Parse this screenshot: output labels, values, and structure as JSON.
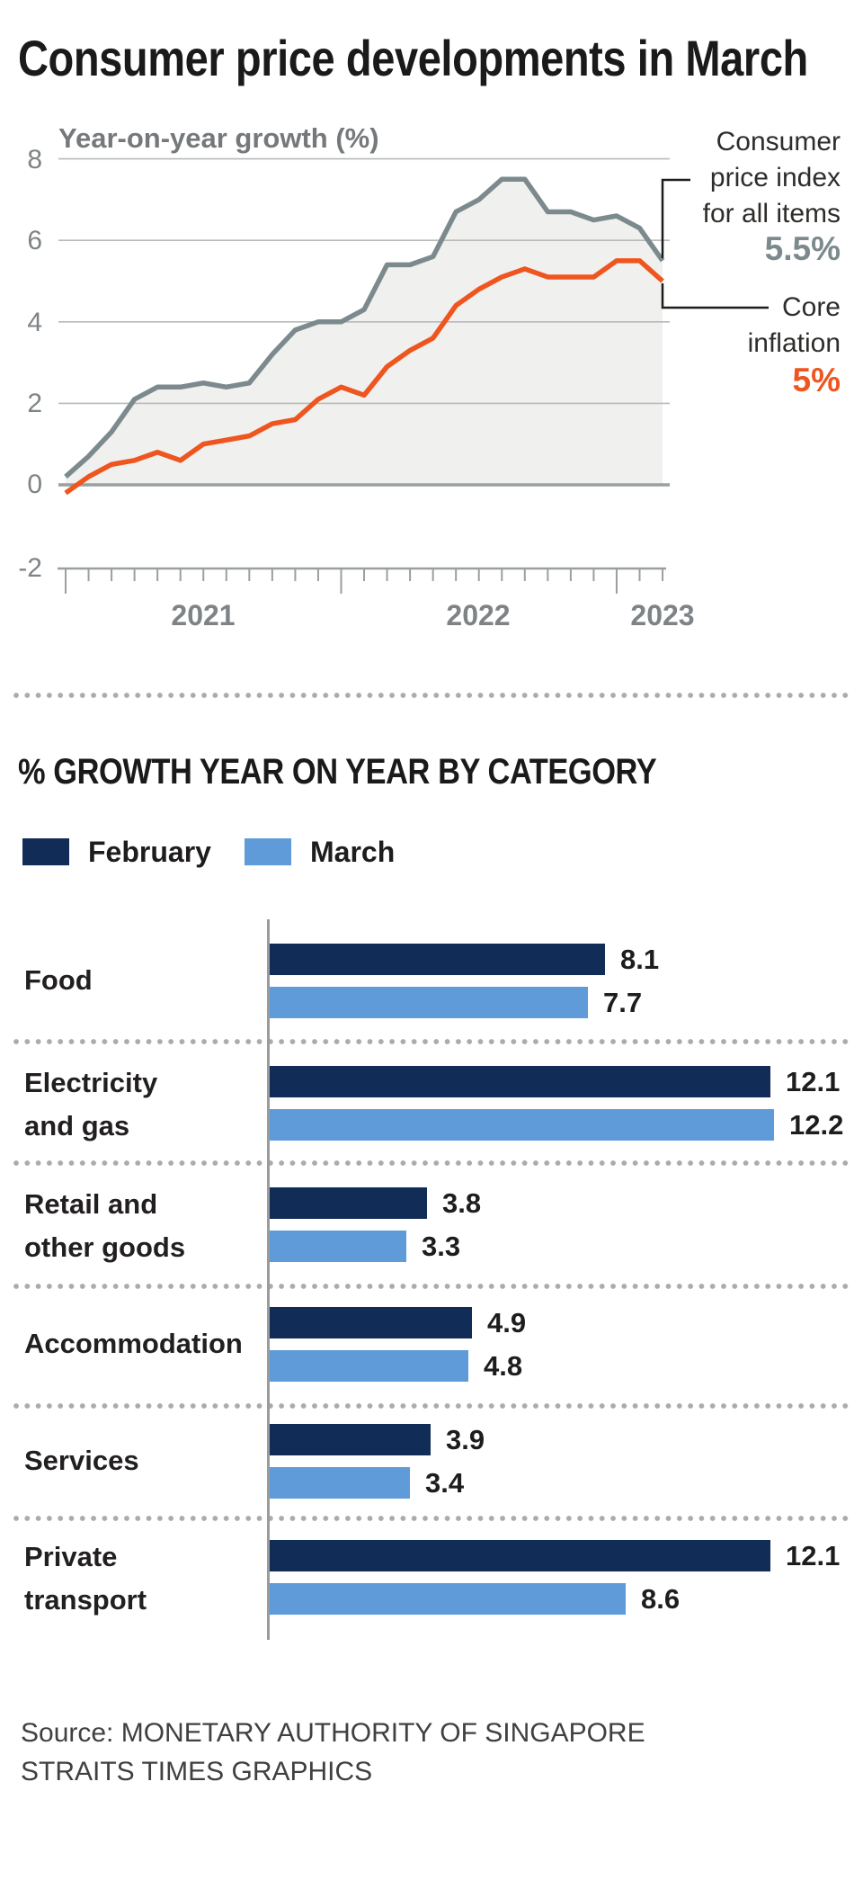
{
  "title": "Consumer price developments in March",
  "line_chart": {
    "subtitle": "Year-on-year growth (%)",
    "y_ticks": [
      "8",
      "6",
      "4",
      "2",
      "0",
      "-2"
    ],
    "x_labels": [
      "2021",
      "2022",
      "2023"
    ],
    "annotations": {
      "cpi": {
        "line1": "Consumer",
        "line2": "price index",
        "line3": "for all items",
        "value": "5.5%"
      },
      "core": {
        "line1": "Core",
        "line2": "inflation",
        "value": "5%"
      }
    }
  },
  "chart_data": [
    {
      "type": "line",
      "title": "Consumer price developments in March",
      "ylabel": "Year-on-year growth (%)",
      "ylim": [
        -2,
        8
      ],
      "y_ticks": [
        8,
        6,
        4,
        2,
        0,
        -2
      ],
      "x_start": "Jan 2021",
      "x_end": "Mar 2023",
      "x_frequency": "monthly",
      "x_tick_years": [
        "2021",
        "2022",
        "2023"
      ],
      "grid": true,
      "series": [
        {
          "name": "Consumer price index for all items",
          "color": "#7c8a8e",
          "end_label": "5.5%",
          "values": [
            0.2,
            0.7,
            1.3,
            2.1,
            2.4,
            2.4,
            2.5,
            2.4,
            2.5,
            3.2,
            3.8,
            4.0,
            4.0,
            4.3,
            5.4,
            5.4,
            5.6,
            6.7,
            7.0,
            7.5,
            7.5,
            6.7,
            6.7,
            6.5,
            6.6,
            6.3,
            5.5
          ]
        },
        {
          "name": "Core inflation",
          "color": "#ee551f",
          "end_label": "5%",
          "values": [
            -0.2,
            0.2,
            0.5,
            0.6,
            0.8,
            0.6,
            1.0,
            1.1,
            1.2,
            1.5,
            1.6,
            2.1,
            2.4,
            2.2,
            2.9,
            3.3,
            3.6,
            4.4,
            4.8,
            5.1,
            5.3,
            5.1,
            5.1,
            5.1,
            5.5,
            5.5,
            5.0
          ]
        }
      ]
    },
    {
      "type": "bar",
      "title": "% GROWTH YEAR ON YEAR BY CATEGORY",
      "orientation": "horizontal",
      "categories": [
        "Food",
        "Electricity and gas",
        "Retail and other goods",
        "Accommodation",
        "Services",
        "Private transport"
      ],
      "categories_lines": [
        [
          "Food"
        ],
        [
          "Electricity",
          "and gas"
        ],
        [
          "Retail and",
          "other goods"
        ],
        [
          "Accommodation"
        ],
        [
          "Services"
        ],
        [
          "Private",
          "transport"
        ]
      ],
      "series": [
        {
          "name": "February",
          "color": "#112c56",
          "values": [
            8.1,
            12.1,
            3.8,
            4.9,
            3.9,
            12.1
          ]
        },
        {
          "name": "March",
          "color": "#5f9bd8",
          "values": [
            7.7,
            12.2,
            3.3,
            4.8,
            3.4,
            8.6
          ]
        }
      ]
    }
  ],
  "bar_section": {
    "heading": "% GROWTH YEAR ON YEAR BY CATEGORY",
    "legend": [
      {
        "label": "February",
        "color": "#112c56"
      },
      {
        "label": "March",
        "color": "#5f9bd8"
      }
    ]
  },
  "source": {
    "line1": "Source: MONETARY AUTHORITY OF SINGAPORE",
    "line2": "STRAITS TIMES GRAPHICS"
  },
  "colors": {
    "february_navy": "#112c56",
    "march_blue": "#5f9bd8",
    "cpi_line_gray": "#7c8a8e",
    "core_line_orange": "#ee551f",
    "area_fill": "#f0f0ef",
    "gridline": "#b7baba",
    "axis_gray": "#9a9f9f"
  }
}
